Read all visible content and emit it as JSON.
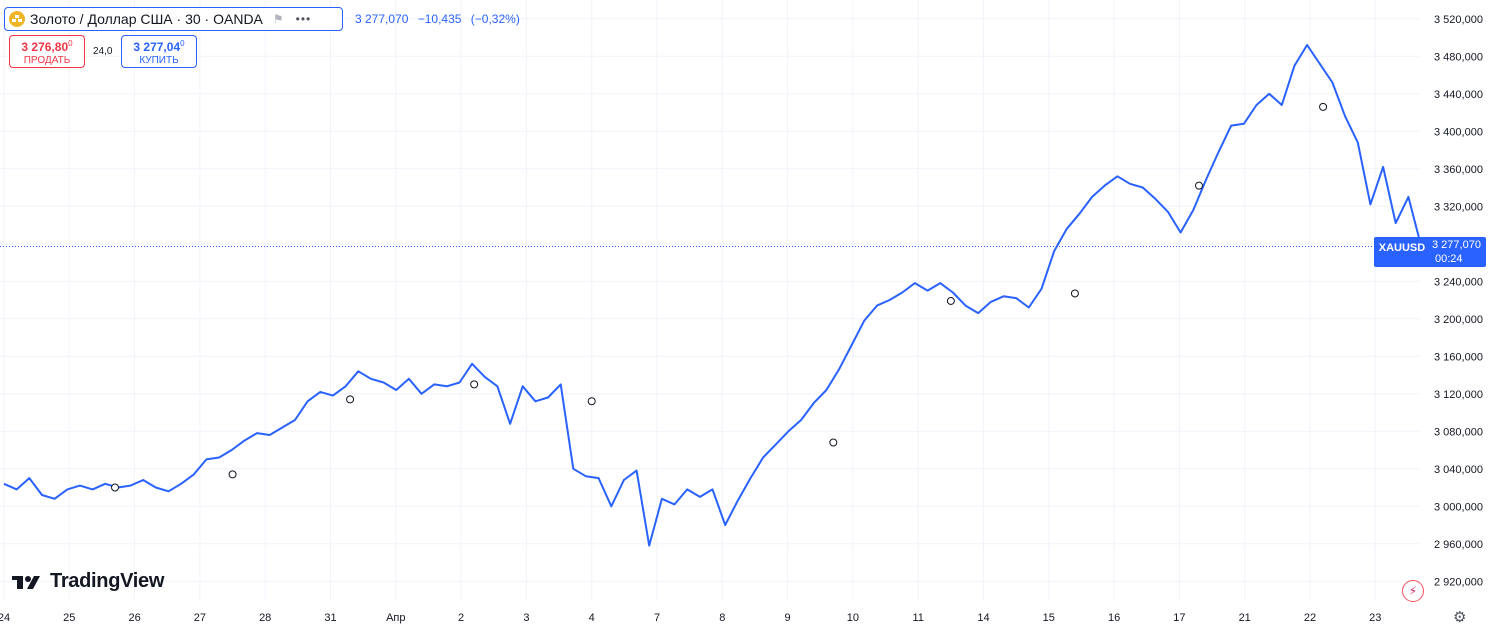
{
  "header": {
    "symbol_title": "Золото / Доллар США · 30 · OANDA",
    "icons": {
      "symbol": "gold-coin-icon",
      "flag": "flag-icon",
      "more": "more-icon"
    },
    "quote": {
      "last": "3 277,070",
      "change": "−10,435",
      "change_pct": "(−0,32%)"
    }
  },
  "trade": {
    "sell_price_main": "3 276,80",
    "sell_price_sup": "0",
    "sell_label": "ПРОДАТЬ",
    "spread": "24,0",
    "buy_price_main": "3 277,04",
    "buy_price_sup": "0",
    "buy_label": "КУПИТЬ"
  },
  "branding": {
    "logo_text": "TradingView",
    "logo_icon": "tradingview-logo-icon"
  },
  "price_tag": {
    "symbol": "XAUUSD",
    "price": "3 277,070",
    "countdown": "00:24"
  },
  "colors": {
    "line": "#2962ff",
    "sell": "#f23645",
    "buy": "#2962ff",
    "grid": "#f0f3fa",
    "axis_text": "#131722",
    "tag": "#2962ff"
  },
  "chart_data": {
    "type": "line",
    "series": [
      {
        "values": [
          3024,
          3018,
          3030,
          3012,
          3008,
          3018,
          3022,
          3018,
          3024,
          3020,
          3022,
          3028,
          3020,
          3016,
          3024,
          3034,
          3050,
          3052,
          3060,
          3070,
          3078,
          3076,
          3084,
          3092,
          3112,
          3122,
          3118,
          3128,
          3144,
          3136,
          3132,
          3124,
          3136,
          3120,
          3130,
          3128,
          3132,
          3152,
          3138,
          3128,
          3088,
          3128,
          3112,
          3116,
          3130,
          3040,
          3032,
          3030,
          3000,
          3028,
          3038,
          2958,
          3008,
          3002,
          3018,
          3010,
          3018,
          2980,
          3006,
          3030,
          3052,
          3066,
          3080,
          3092,
          3110,
          3124,
          3146,
          3172,
          3198,
          3214,
          3220,
          3228,
          3238,
          3230,
          3238,
          3228,
          3214,
          3206,
          3218,
          3224,
          3222,
          3212,
          3232,
          3272,
          3296,
          3312,
          3330,
          3342,
          3352,
          3344,
          3340,
          3328,
          3314,
          3292,
          3316,
          3348,
          3378,
          3406,
          3408,
          3428,
          3440,
          3428,
          3470,
          3492,
          3472,
          3452,
          3416,
          3388,
          3322,
          3362,
          3302,
          3330,
          3278
        ]
      }
    ],
    "x_ticks": [
      {
        "label": "24",
        "pos": 0.0
      },
      {
        "label": "25",
        "pos": 1.0
      },
      {
        "label": "26",
        "pos": 2.0
      },
      {
        "label": "27",
        "pos": 3.0
      },
      {
        "label": "28",
        "pos": 4.0
      },
      {
        "label": "31",
        "pos": 5.0
      },
      {
        "label": "Апр",
        "pos": 6.0
      },
      {
        "label": "2",
        "pos": 7.0
      },
      {
        "label": "3",
        "pos": 8.0
      },
      {
        "label": "4",
        "pos": 9.0
      },
      {
        "label": "7",
        "pos": 10.0
      },
      {
        "label": "8",
        "pos": 11.0
      },
      {
        "label": "9",
        "pos": 12.0
      },
      {
        "label": "10",
        "pos": 13.0
      },
      {
        "label": "11",
        "pos": 14.0
      },
      {
        "label": "14",
        "pos": 15.0
      },
      {
        "label": "15",
        "pos": 16.0
      },
      {
        "label": "16",
        "pos": 17.0
      },
      {
        "label": "17",
        "pos": 18.0
      },
      {
        "label": "21",
        "pos": 19.0
      },
      {
        "label": "22",
        "pos": 20.0
      },
      {
        "label": "23",
        "pos": 21.0
      }
    ],
    "y_ticks": [
      "3 520,000",
      "3 480,000",
      "3 440,000",
      "3 400,000",
      "3 360,000",
      "3 320,000",
      "3 280,000",
      "3 240,000",
      "3 200,000",
      "3 160,000",
      "3 120,000",
      "3 080,000",
      "3 040,000",
      "3 000,000",
      "2 960,000",
      "2 920,000"
    ],
    "y_tick_values": [
      3520,
      3480,
      3440,
      3400,
      3360,
      3320,
      3280,
      3240,
      3200,
      3160,
      3120,
      3080,
      3040,
      3000,
      2960,
      2920
    ],
    "ylim": [
      2900,
      3540
    ],
    "xlim": [
      0.0,
      21.7
    ],
    "last_value": 3277.07,
    "grid": true,
    "event_markers": [
      {
        "pos": 1.7,
        "value": 3020
      },
      {
        "pos": 3.5,
        "value": 3034
      },
      {
        "pos": 5.3,
        "value": 3114
      },
      {
        "pos": 7.2,
        "value": 3130
      },
      {
        "pos": 9.0,
        "value": 3112
      },
      {
        "pos": 12.7,
        "value": 3068
      },
      {
        "pos": 14.5,
        "value": 3219
      },
      {
        "pos": 16.4,
        "value": 3227
      },
      {
        "pos": 18.3,
        "value": 3342
      },
      {
        "pos": 20.2,
        "value": 3426
      },
      {
        "pos": 21.6,
        "value": 3277
      }
    ]
  }
}
